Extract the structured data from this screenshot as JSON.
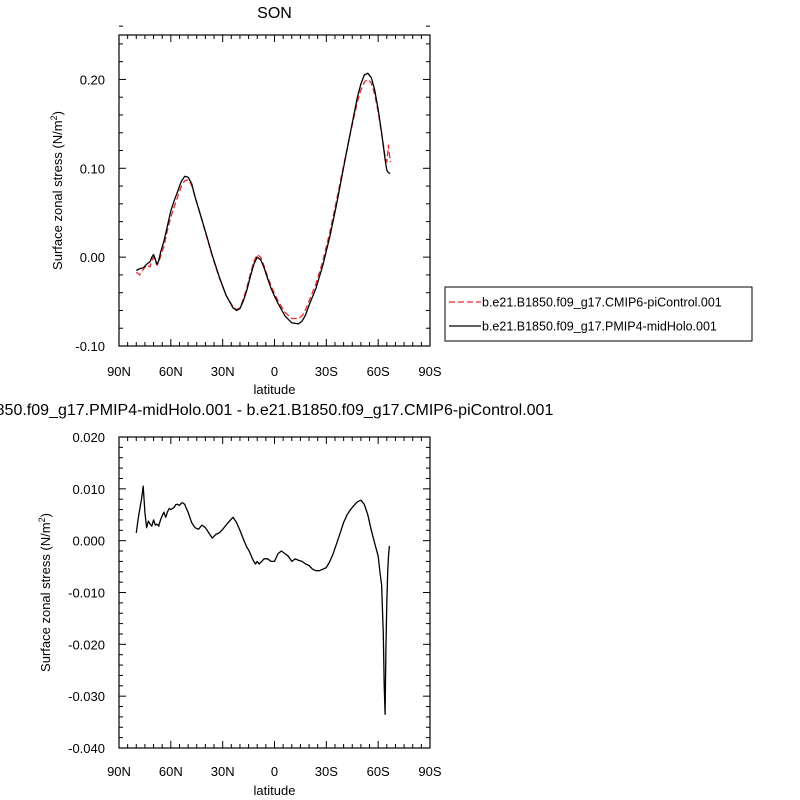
{
  "chart_data": [
    {
      "type": "line",
      "title": "SON",
      "xlabel": "latitude",
      "ylabel": "Surface zonal stress (N/m",
      "ylabel_sup": "2",
      "ylabel_end": ")",
      "xlim": [
        90,
        -90
      ],
      "ylim": [
        -0.1,
        0.25
      ],
      "xticks": [
        90,
        60,
        30,
        0,
        -30,
        -60,
        -90
      ],
      "xtick_labels": [
        "90N",
        "60N",
        "30N",
        "0",
        "30S",
        "60S",
        "90S"
      ],
      "yticks": [
        -0.1,
        0.0,
        0.1,
        0.2
      ],
      "ytick_labels": [
        "-0.10",
        "0.00",
        "0.10",
        "0.20"
      ],
      "legend_position": "outside-right",
      "series": [
        {
          "name": "b.e21.B1850.f09_g17.CMIP6-piControl.001",
          "color": "#e8272d",
          "dash": "dashed",
          "x": [
            80,
            78,
            76,
            74,
            72,
            71,
            70,
            68,
            67,
            66,
            64,
            62,
            60,
            58,
            56,
            54,
            52,
            50,
            48,
            46,
            44,
            42,
            40,
            36,
            32,
            28,
            24,
            22,
            20,
            18,
            16,
            14,
            12,
            10,
            8,
            6,
            4,
            2,
            0,
            -2,
            -6,
            -10,
            -14,
            -16,
            -18,
            -20,
            -24,
            -28,
            -32,
            -36,
            -40,
            -44,
            -48,
            -50,
            -52,
            -54,
            -56,
            -58,
            -60,
            -62,
            -64,
            -65,
            -66,
            -67
          ],
          "y": [
            -0.017,
            -0.02,
            -0.014,
            -0.009,
            -0.011,
            -0.004,
            0.0,
            -0.009,
            -0.006,
            0.001,
            0.012,
            0.03,
            0.045,
            0.057,
            0.068,
            0.079,
            0.086,
            0.087,
            0.081,
            0.068,
            0.055,
            0.042,
            0.028,
            0.001,
            -0.023,
            -0.043,
            -0.056,
            -0.059,
            -0.057,
            -0.047,
            -0.034,
            -0.019,
            -0.005,
            0.003,
            0.0,
            -0.01,
            -0.022,
            -0.032,
            -0.041,
            -0.049,
            -0.062,
            -0.069,
            -0.069,
            -0.066,
            -0.059,
            -0.049,
            -0.03,
            -0.004,
            0.028,
            0.065,
            0.103,
            0.14,
            0.175,
            0.188,
            0.197,
            0.2,
            0.196,
            0.183,
            0.163,
            0.139,
            0.113,
            0.107,
            0.126,
            0.107
          ]
        },
        {
          "name": "b.e21.B1850.f09_g17.PMIP4-midHolo.001",
          "color": "#000000",
          "dash": "solid",
          "x": [
            80,
            78,
            76,
            74,
            72,
            71,
            70,
            68,
            67,
            66,
            64,
            62,
            60,
            58,
            56,
            54,
            52,
            50,
            48,
            46,
            44,
            42,
            40,
            36,
            32,
            28,
            24,
            22,
            20,
            18,
            16,
            14,
            12,
            10,
            8,
            6,
            4,
            2,
            0,
            -2,
            -6,
            -10,
            -14,
            -16,
            -18,
            -20,
            -24,
            -28,
            -32,
            -36,
            -40,
            -44,
            -48,
            -50,
            -52,
            -54,
            -56,
            -58,
            -60,
            -62,
            -64,
            -65,
            -66,
            -67
          ],
          "y": [
            -0.015,
            -0.013,
            -0.012,
            -0.008,
            -0.005,
            0.0,
            0.003,
            -0.008,
            -0.004,
            0.005,
            0.018,
            0.035,
            0.052,
            0.064,
            0.074,
            0.085,
            0.091,
            0.09,
            0.083,
            0.068,
            0.055,
            0.042,
            0.029,
            0.002,
            -0.022,
            -0.043,
            -0.057,
            -0.06,
            -0.058,
            -0.049,
            -0.037,
            -0.022,
            -0.008,
            0.0,
            -0.003,
            -0.012,
            -0.024,
            -0.035,
            -0.044,
            -0.052,
            -0.066,
            -0.074,
            -0.075,
            -0.072,
            -0.065,
            -0.054,
            -0.035,
            -0.009,
            0.023,
            0.06,
            0.101,
            0.141,
            0.18,
            0.195,
            0.205,
            0.207,
            0.202,
            0.188,
            0.166,
            0.14,
            0.11,
            0.098,
            0.095,
            0.094
          ]
        }
      ]
    },
    {
      "type": "line",
      "title": "850.f09_g17.PMIP4-midHolo.001 - b.e21.B1850.f09_g17.CMIP6-piControl.001",
      "xlabel": "latitude",
      "ylabel": "Surface zonal stress (N/m",
      "ylabel_sup": "2",
      "ylabel_end": ")",
      "xlim": [
        90,
        -90
      ],
      "ylim": [
        -0.04,
        0.02
      ],
      "xticks": [
        90,
        60,
        30,
        0,
        -30,
        -60,
        -90
      ],
      "xtick_labels": [
        "90N",
        "60N",
        "30N",
        "0",
        "30S",
        "60S",
        "90S"
      ],
      "yticks": [
        -0.04,
        -0.03,
        -0.02,
        -0.01,
        0.0,
        0.01,
        0.02
      ],
      "ytick_labels": [
        "-0.040",
        "-0.030",
        "-0.020",
        "-0.010",
        "0.000",
        "0.010",
        "0.020"
      ],
      "series": [
        {
          "color": "#000000",
          "dash": "solid",
          "x": [
            80,
            79,
            78,
            77,
            76,
            75,
            74,
            73,
            72,
            71,
            70,
            69,
            68,
            67,
            66,
            65,
            64,
            63,
            62,
            61,
            60,
            59,
            58,
            57,
            56,
            55,
            54,
            53,
            52,
            51,
            50,
            49,
            48,
            46,
            44,
            42,
            40,
            38,
            36,
            34,
            32,
            30,
            28,
            26,
            24,
            22,
            20,
            18,
            17,
            16,
            15,
            14,
            13,
            12,
            11,
            10,
            9,
            8,
            6,
            4,
            2,
            0,
            -2,
            -4,
            -6,
            -8,
            -10,
            -12,
            -14,
            -16,
            -18,
            -20,
            -22,
            -24,
            -26,
            -28,
            -30,
            -32,
            -34,
            -36,
            -38,
            -40,
            -42,
            -44,
            -46,
            -48,
            -50,
            -52,
            -54,
            -56,
            -58,
            -60,
            -61,
            -62,
            -63,
            -63.5,
            -64,
            -64.5,
            -65,
            -65.5,
            -66,
            -66.5
          ],
          "y": [
            0.0015,
            0.004,
            0.006,
            0.008,
            0.0105,
            0.0055,
            0.0025,
            0.0038,
            0.0032,
            0.0028,
            0.004,
            0.003,
            0.0032,
            0.0028,
            0.004,
            0.0048,
            0.0055,
            0.0045,
            0.0055,
            0.0062,
            0.006,
            0.0062,
            0.0065,
            0.007,
            0.007,
            0.0068,
            0.0072,
            0.0073,
            0.007,
            0.0062,
            0.0055,
            0.0045,
            0.0035,
            0.0025,
            0.0022,
            0.003,
            0.0025,
            0.0015,
            0.0005,
            0.0012,
            0.0015,
            0.0022,
            0.003,
            0.0038,
            0.0045,
            0.0035,
            0.002,
            0.0003,
            -0.0005,
            -0.0013,
            -0.0018,
            -0.0025,
            -0.0033,
            -0.004,
            -0.0045,
            -0.004,
            -0.0045,
            -0.0042,
            -0.0035,
            -0.0035,
            -0.004,
            -0.004,
            -0.0025,
            -0.002,
            -0.0025,
            -0.003,
            -0.004,
            -0.0035,
            -0.0038,
            -0.004,
            -0.0045,
            -0.0048,
            -0.0055,
            -0.0058,
            -0.0058,
            -0.0055,
            -0.0052,
            -0.004,
            -0.0025,
            -0.0005,
            0.0015,
            0.0035,
            0.005,
            0.006,
            0.0068,
            0.0075,
            0.0078,
            0.007,
            0.005,
            0.002,
            -0.0005,
            -0.003,
            -0.006,
            -0.0085,
            -0.018,
            -0.028,
            -0.0335,
            -0.021,
            -0.012,
            -0.006,
            -0.003,
            -0.001
          ]
        }
      ]
    }
  ]
}
